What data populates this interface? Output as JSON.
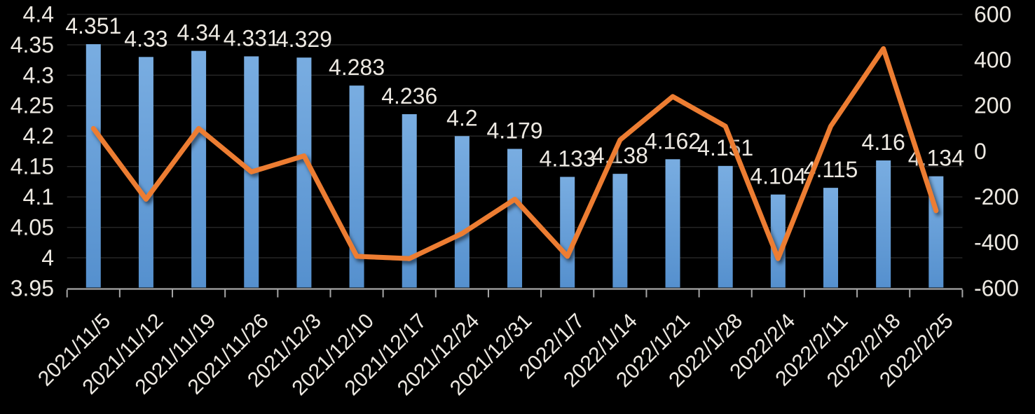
{
  "chart_data": {
    "type": "combo",
    "title": "",
    "legend": "none",
    "grid": true,
    "background": "#000000",
    "text_color": "#EDE9E2",
    "gridline_color": "#262626",
    "axis_line_color": "#A6A6A6",
    "categories": [
      "2021/11/5",
      "2021/11/12",
      "2021/11/19",
      "2021/11/26",
      "2021/12/3",
      "2021/12/10",
      "2021/12/17",
      "2021/12/24",
      "2021/12/31",
      "2022/1/7",
      "2022/1/14",
      "2022/1/21",
      "2022/1/28",
      "2022/2/4",
      "2022/2/11",
      "2022/2/18",
      "2022/2/25"
    ],
    "series": [
      {
        "name": "rate-bars",
        "type": "bar",
        "y_axis": "left",
        "color_top": "#79ADE1",
        "color_bottom": "#5590CE",
        "values": [
          4.351,
          4.33,
          4.34,
          4.331,
          4.329,
          4.283,
          4.236,
          4.2,
          4.179,
          4.133,
          4.138,
          4.162,
          4.151,
          4.104,
          4.115,
          4.16,
          4.134
        ],
        "labels": [
          "4.351",
          "4.33",
          "4.34",
          "4.331",
          "4.329",
          "4.283",
          "4.236",
          "4.2",
          "4.179",
          "4.133",
          "4.138",
          "4.162",
          "4.151",
          "4.104",
          "4.115",
          "4.16",
          "4.134"
        ]
      },
      {
        "name": "weekly-change-line",
        "type": "line",
        "y_axis": "right",
        "color": "#ED7D31",
        "values": [
          100,
          -210,
          100,
          -90,
          -20,
          -460,
          -470,
          -360,
          -210,
          -460,
          50,
          240,
          110,
          -470,
          110,
          450,
          -260
        ]
      }
    ],
    "left_axis": {
      "min": 3.95,
      "max": 4.4,
      "step": 0.05,
      "tick_labels": [
        "4.4",
        "4.35",
        "4.3",
        "4.25",
        "4.2",
        "4.15",
        "4.1",
        "4.05",
        "4",
        "3.95"
      ]
    },
    "right_axis": {
      "min": -600,
      "max": 600,
      "step": 200,
      "tick_labels": [
        "600",
        "400",
        "200",
        "0",
        "-200",
        "-400",
        "-600"
      ]
    }
  }
}
